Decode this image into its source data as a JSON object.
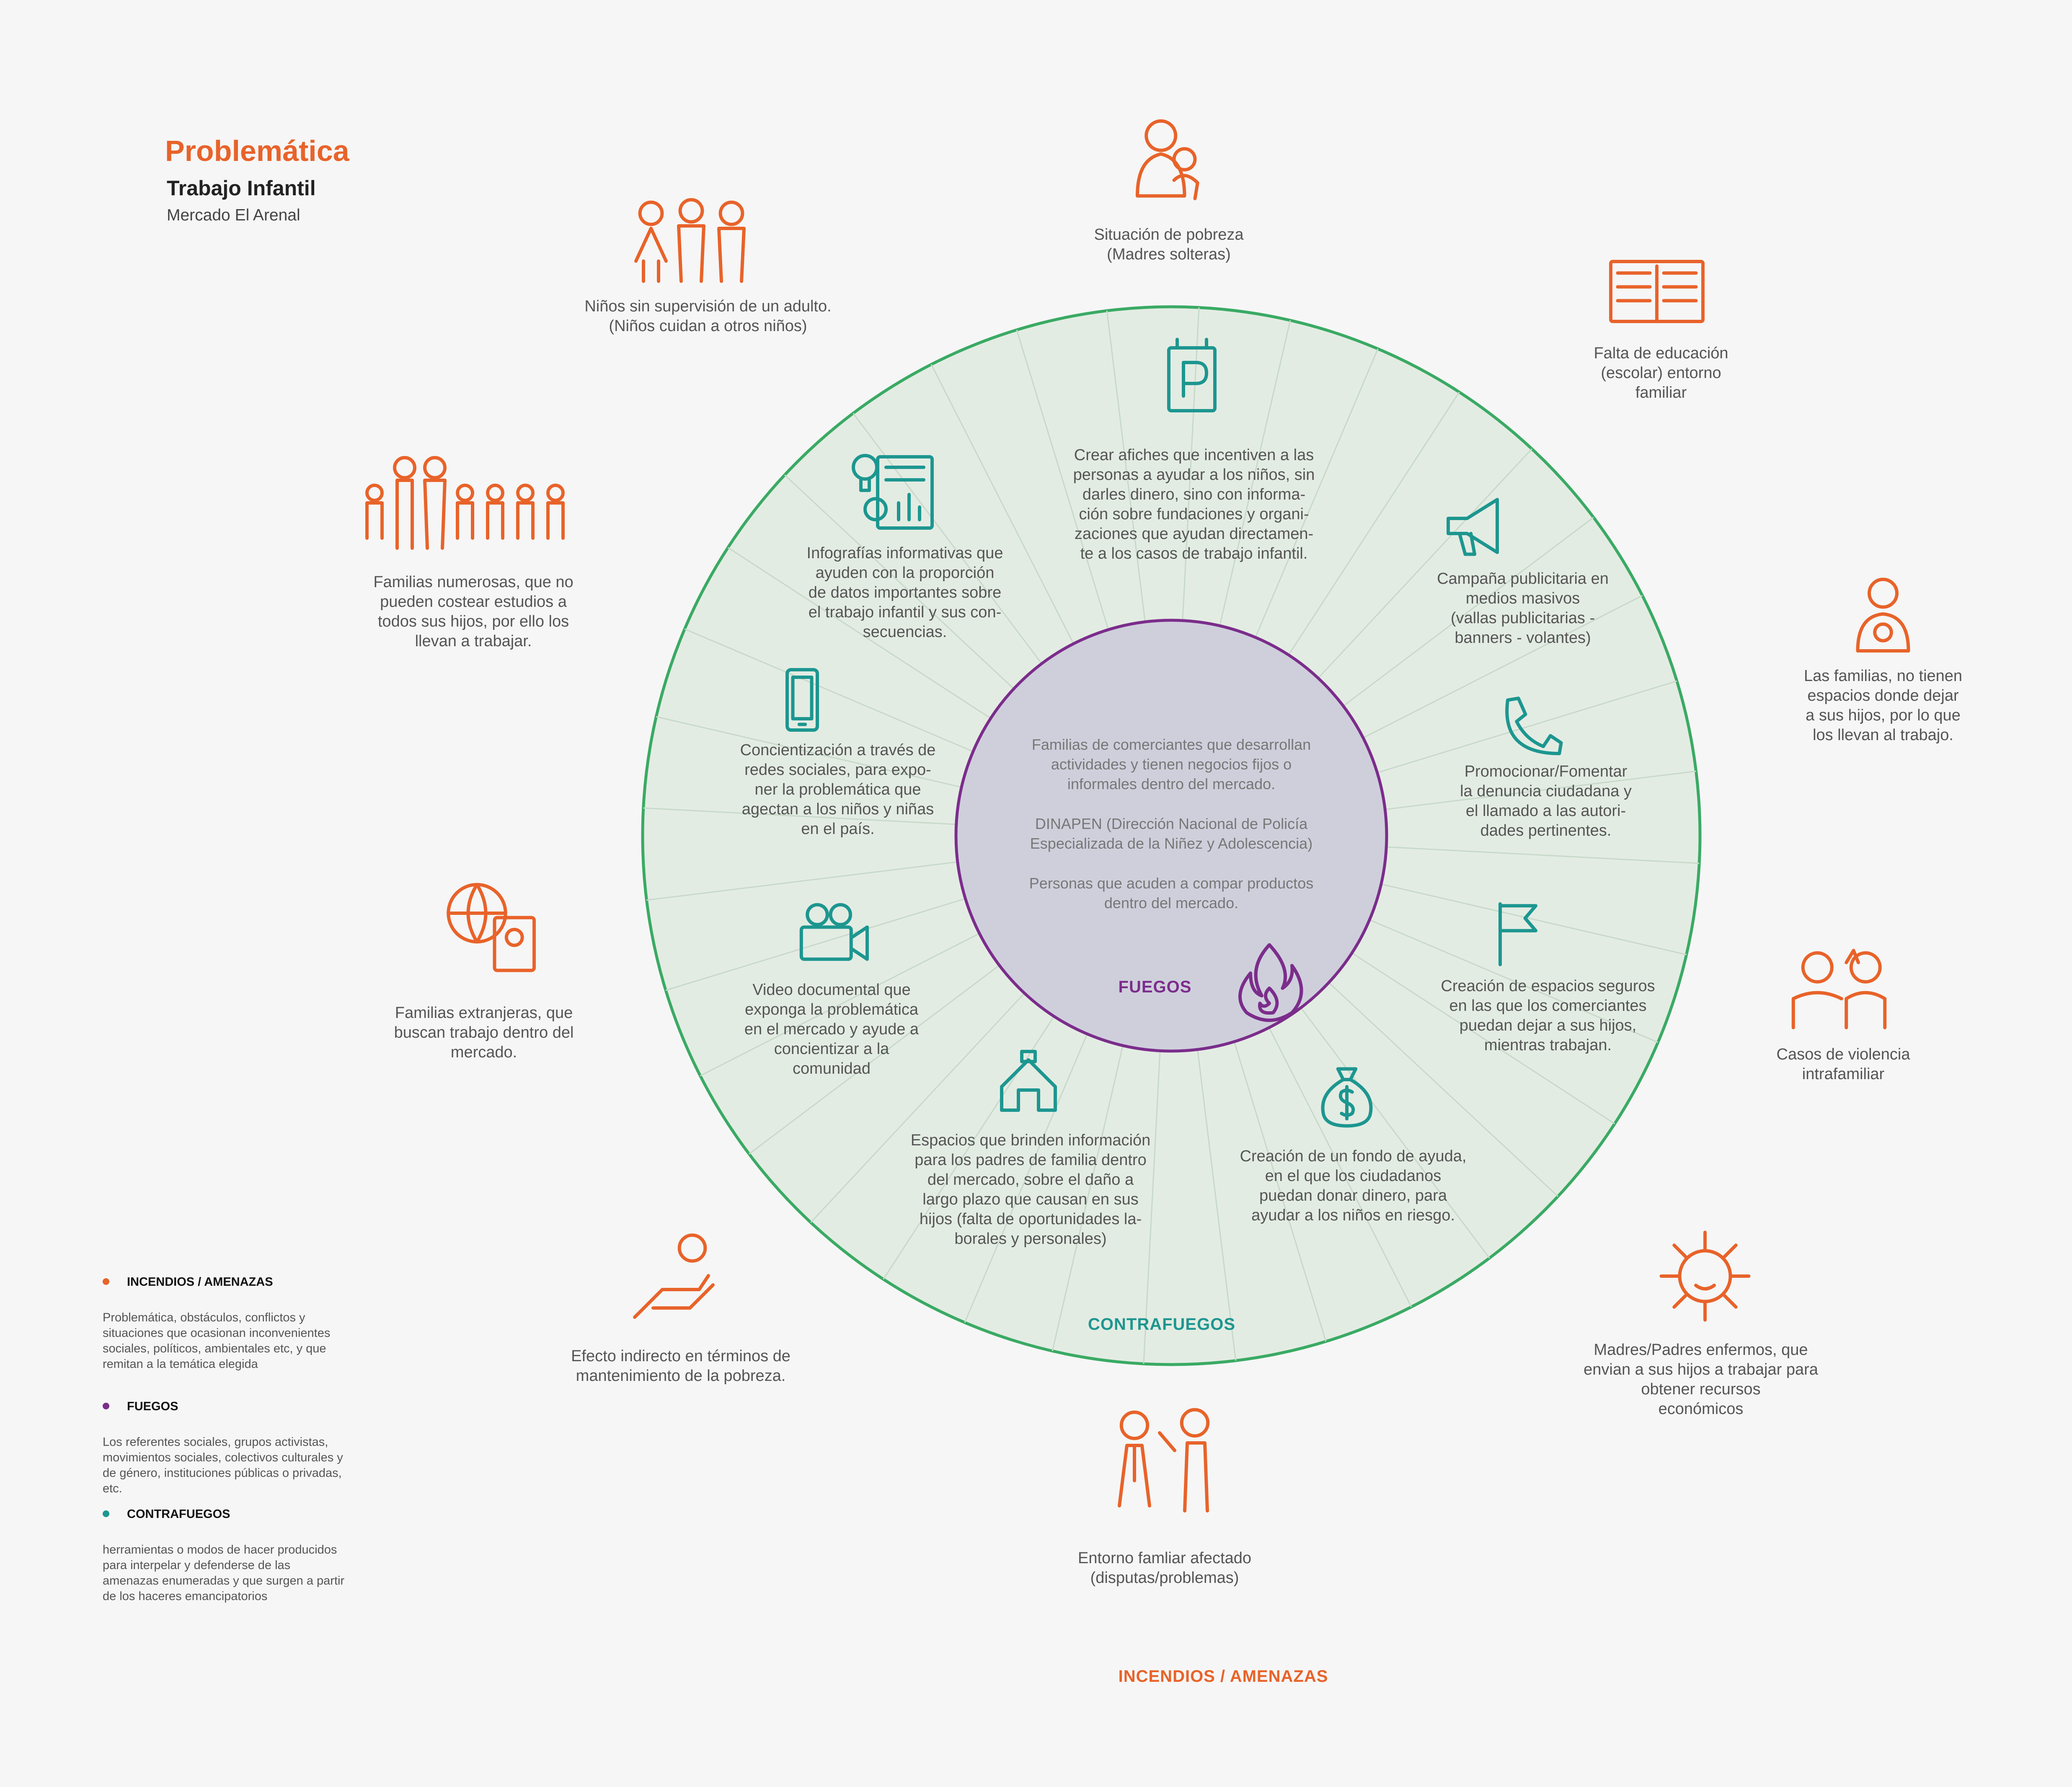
{
  "header": {
    "title": "Problemática",
    "subtitle": "Trabajo Infantil",
    "place": "Mercado El Arenal"
  },
  "colors": {
    "threat": "#e8632a",
    "fire": "#7b2d8b",
    "counter": "#1d9690",
    "ring_stroke": "#3aaa64",
    "ring_fill": "#e3ece3",
    "core_fill": "#cfcfdc"
  },
  "center": {
    "paragraphs": [
      [
        "Familias de comerciantes que desarrollan",
        "actividades y tienen negocios fijos o",
        "informales dentro del mercado."
      ],
      [
        "DINAPEN (Dirección Nacional de Policía",
        "Especializada de la Niñez y Adolescencia)"
      ],
      [
        "Personas que acuden a compar productos",
        "dentro del mercado."
      ]
    ],
    "label": "FUEGOS",
    "icon": "fire-icon"
  },
  "ring_label": "CONTRAFUEGOS",
  "bottom_label": "INCENDIOS / AMENAZAS",
  "threats": [
    {
      "icon": "mother-child-icon",
      "lines": [
        "Situación de pobreza",
        "(Madres solteras)"
      ]
    },
    {
      "icon": "open-book-icon",
      "lines": [
        "Falta de educación",
        "(escolar) entorno",
        "familiar"
      ]
    },
    {
      "icon": "woman-baby-icon",
      "lines": [
        "Las familias, no tienen",
        "espacios donde dejar",
        "a sus hijos, por lo que",
        "los llevan al trabajo."
      ]
    },
    {
      "icon": "violence-icon",
      "lines": [
        "Casos de violencia",
        "intrafamiliar"
      ]
    },
    {
      "icon": "virus-icon",
      "lines": [
        "Madres/Padres enfermos, que",
        "envian a sus hijos a trabajar para",
        "obtener recursos",
        "económicos"
      ]
    },
    {
      "icon": "arguing-couple-icon",
      "lines": [
        "Entorno famliar afectado",
        "(disputas/problemas)"
      ]
    },
    {
      "icon": "hand-coin-icon",
      "lines": [
        "Efecto indirecto en términos de",
        "mantenimiento de la pobreza."
      ]
    },
    {
      "icon": "globe-passport-icon",
      "lines": [
        "Familias extranjeras, que",
        "buscan trabajo dentro del",
        "mercado."
      ]
    },
    {
      "icon": "large-family-icon",
      "lines": [
        "Familias numerosas, que no",
        "pueden costear estudios a",
        "todos sus hijos, por ello los",
        "llevan a trabajar."
      ]
    },
    {
      "icon": "children-group-icon",
      "lines": [
        "Niños sin supervisión de un adulto.",
        "(Niños cuidan a otros niños)"
      ]
    }
  ],
  "counters": [
    {
      "icon": "poster-icon",
      "lines": [
        "Crear afiches que incentiven a las",
        "personas a ayudar a los niños, sin",
        "darles dinero, sino con informa-",
        "ción sobre fundaciones y organi-",
        "zaciones que ayudan directamen-",
        "te a los casos de trabajo infantil."
      ]
    },
    {
      "icon": "megaphone-icon",
      "lines": [
        "Campaña publicitaria en",
        "medios masivos",
        "(vallas publicitarias -",
        "banners - volantes)"
      ]
    },
    {
      "icon": "phone-icon",
      "lines": [
        "Promocionar/Fomentar",
        "la denuncia ciudadana y",
        "el llamado a las autori-",
        "dades pertinentes."
      ]
    },
    {
      "icon": "flag-icon",
      "lines": [
        "Creación de espacios seguros",
        "en las que los comerciantes",
        "puedan dejar a sus hijos,",
        "mientras trabajan."
      ]
    },
    {
      "icon": "money-bag-icon",
      "lines": [
        "Creación de un fondo de ayuda,",
        "en el que los ciudadanos",
        "puedan donar dinero, para",
        "ayudar a los niños en riesgo."
      ]
    },
    {
      "icon": "house-icon",
      "lines": [
        "Espacios que brinden información",
        "para los padres de familia dentro",
        "del mercado, sobre el daño a",
        "largo plazo que causan en sus",
        "hijos (falta de oportunidades la-",
        "borales y personales)"
      ]
    },
    {
      "icon": "video-camera-icon",
      "lines": [
        "Video documental que",
        "exponga la problemática",
        "en el mercado y ayude a",
        "concientizar a la",
        "comunidad"
      ]
    },
    {
      "icon": "smartphone-icon",
      "lines": [
        "Concientización a través de",
        "redes sociales, para expo-",
        "ner la problemática que",
        "agectan a los niños y niñas",
        "en el país."
      ]
    },
    {
      "icon": "infographic-icon",
      "lines": [
        "Infografías informativas que",
        "ayuden con la proporción",
        "de datos importantes sobre",
        "el trabajo infantil y sus con-",
        "secuencias."
      ]
    }
  ],
  "legend": [
    {
      "title": "INCENDIOS / AMENAZAS",
      "color": "#e8632a",
      "lines": [
        "Problemática, obstáculos, conflictos y",
        "situaciones que ocasionan inconvenientes",
        "sociales, políticos, ambientales etc, y que",
        "remitan a la temática elegida"
      ]
    },
    {
      "title": "FUEGOS",
      "color": "#7b2d8b",
      "lines": [
        "Los referentes sociales, grupos activistas,",
        "movimientos sociales, colectivos culturales y",
        "de género, instituciones públicas o privadas,",
        "etc."
      ]
    },
    {
      "title": "CONTRAFUEGOS",
      "color": "#1d9690",
      "lines": [
        "herramientas o modos de hacer producidos",
        "para interpelar y defenderse de las",
        "amenazas enumeradas y que surgen a partir",
        "de los haceres emancipatorios"
      ]
    }
  ]
}
